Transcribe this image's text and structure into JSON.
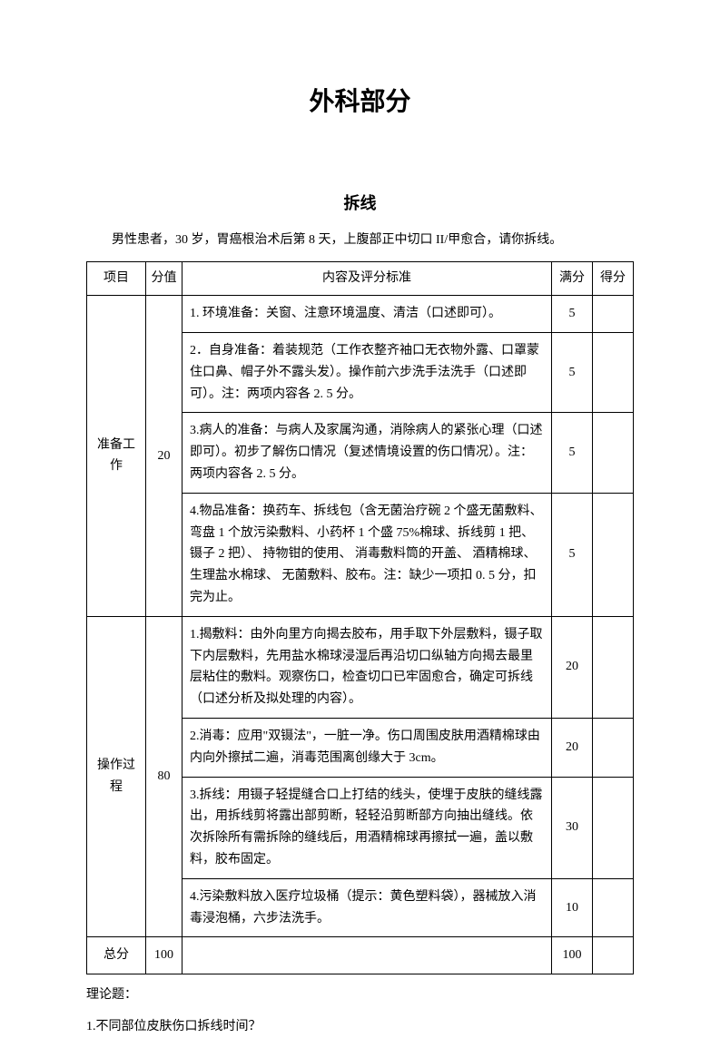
{
  "main_title": "外科部分",
  "sub_title": "拆线",
  "description": "男性患者，30 岁，胃癌根治术后第 8 天，上腹部正中切口 II/甲愈合，请你拆线。",
  "headers": {
    "item": "项目",
    "score": "分值",
    "content": "内容及评分标准",
    "full": "满分",
    "got": "得分"
  },
  "sections": [
    {
      "item": "准备工作",
      "score": "20",
      "rows": [
        {
          "content": "1. 环境准备：关窗、注意环境温度、清洁（口述即可）。",
          "full": "5"
        },
        {
          "content": "2．自身准备：着装规范（工作衣整齐袖口无衣物外露、口罩蒙住口鼻、帽子外不露头发）。操作前六步洗手法洗手（口述即可）。注：两项内容各 2. 5 分。",
          "full": "5"
        },
        {
          "content": "3.病人的准备：与病人及家属沟通，消除病人的紧张心理（口述即可）。初步了解伤口情况（复述情境设置的伤口情况）。注：两项内容各 2. 5 分。",
          "full": "5"
        },
        {
          "content": "4.物品准备：换药车、拆线包（含无菌治疗碗 2 个盛无菌敷料、弯盘 1 个放污染敷料、小药杯 1 个盛 75%棉球、拆线剪 1 把、镊子 2 把）、 持物钳的使用、 消毒敷料筒的开盖、 酒精棉球、生理盐水棉球、 无菌敷料、胶布。注：缺少一项扣 0. 5 分，扣完为止。",
          "full": "5"
        }
      ]
    },
    {
      "item": "操作过程",
      "score": "80",
      "rows": [
        {
          "content": "1.揭敷料：由外向里方向揭去胶布，用手取下外层敷料，镊子取下内层敷料，先用盐水棉球浸湿后再沿切口纵轴方向揭去最里层粘住的敷料。观察伤口，检查切口已牢固愈合，确定可拆线（口述分析及拟处理的内容）。",
          "full": "20"
        },
        {
          "content": "2.消毒：应用\"双镊法\"，一脏一净。伤口周围皮肤用酒精棉球由内向外擦拭二遍，消毒范围离创缘大于 3cm。",
          "full": "20"
        },
        {
          "content": "3.拆线：用镊子轻提缝合口上打结的线头，使埋于皮肤的缝线露出，用拆线剪将露出部剪断，轻轻沿剪断部方向抽出缝线。依次拆除所有需拆除的缝线后，用酒精棉球再擦拭一遍，盖以敷料，胶布固定。",
          "full": "30"
        },
        {
          "content": "4.污染敷料放入医疗垃圾桶（提示：黄色塑料袋），器械放入消毒浸泡桶，六步法洗手。",
          "full": "10"
        }
      ]
    }
  ],
  "total": {
    "item": "总分",
    "score": "100",
    "full": "100"
  },
  "footer": {
    "theory_label": "理论题：",
    "q1": "1.不同部位皮肤伤口拆线时间？"
  }
}
